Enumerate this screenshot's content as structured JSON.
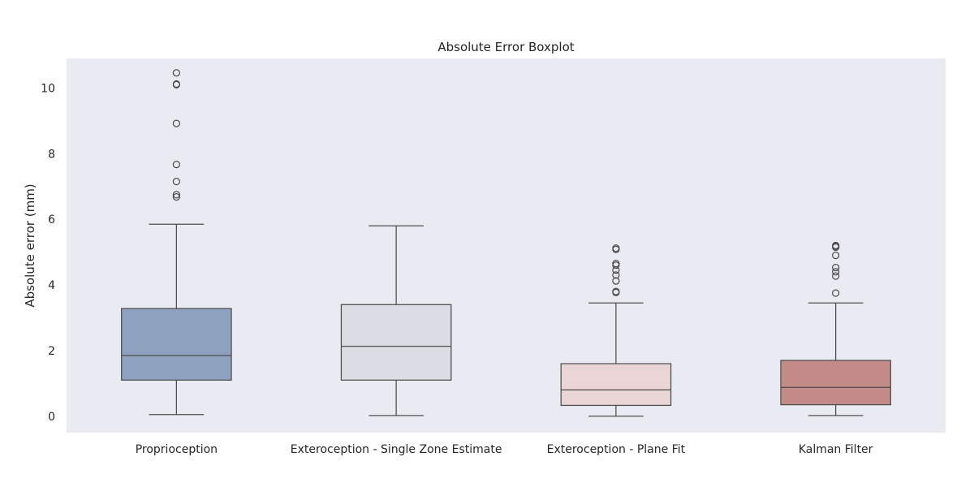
{
  "chart_data": {
    "type": "boxplot",
    "title": "Absolute Error Boxplot",
    "xlabel": "",
    "ylabel": "Absolute error (mm)",
    "ylim": [
      -0.5,
      10.9
    ],
    "yticks": [
      0,
      2,
      4,
      6,
      8,
      10
    ],
    "grid": false,
    "colors": {
      "background": "#EAEAF2",
      "line": "#4D4D4D"
    },
    "categories": [
      "Proprioception",
      "Exteroception - Single Zone Estimate",
      "Exteroception - Plane Fit",
      "Kalman Filter"
    ],
    "boxes": [
      {
        "category": "Proprioception",
        "color": "#8EA1BF",
        "whisker_low": 0.05,
        "q1": 1.1,
        "median": 1.85,
        "q3": 3.28,
        "whisker_high": 5.85,
        "outliers": [
          6.68,
          6.75,
          7.15,
          7.67,
          8.92,
          10.1,
          10.12,
          10.46
        ]
      },
      {
        "category": "Exteroception - Single Zone Estimate",
        "color": "#DADDE4",
        "whisker_low": 0.02,
        "q1": 1.1,
        "median": 2.13,
        "q3": 3.4,
        "whisker_high": 5.8,
        "outliers": []
      },
      {
        "category": "Exteroception - Plane Fit",
        "color": "#E9D5D5",
        "whisker_low": 0.0,
        "q1": 0.33,
        "median": 0.8,
        "q3": 1.6,
        "whisker_high": 3.45,
        "outliers": [
          3.77,
          3.8,
          4.12,
          4.3,
          4.45,
          4.6,
          4.65,
          5.08,
          5.12
        ]
      },
      {
        "category": "Kalman Filter",
        "color": "#C28B88",
        "whisker_low": 0.02,
        "q1": 0.35,
        "median": 0.88,
        "q3": 1.7,
        "whisker_high": 3.45,
        "outliers": [
          3.75,
          4.27,
          4.4,
          4.53,
          4.9,
          5.15,
          5.18,
          5.2
        ]
      }
    ]
  }
}
